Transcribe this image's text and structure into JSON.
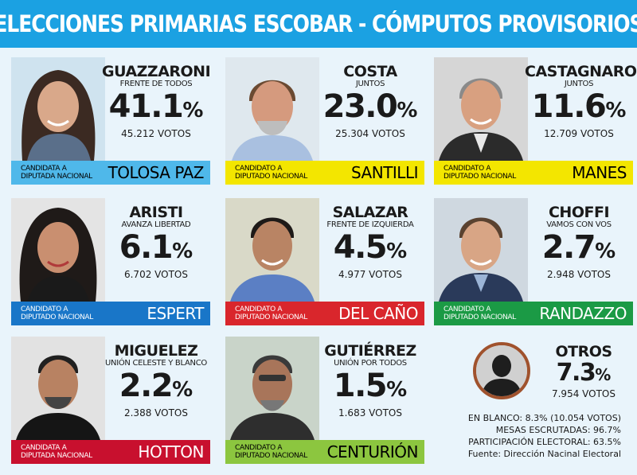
{
  "header": {
    "title": "ELECCIONES PRIMARIAS ESCOBAR - CÓMPUTOS PROVISORIOS"
  },
  "colors": {
    "header": "#1ba1e2",
    "background": "#e9f4fb",
    "lightblue": "#4fb8ea",
    "yellow": "#f3e600",
    "blue": "#1976c8",
    "red": "#d9262c",
    "green": "#1b9a45",
    "lightgreen": "#8cc63f",
    "darkred": "#c8102e"
  },
  "candidates": [
    {
      "surname": "GUAZZARONI",
      "party": "FRENTE DE TODOS",
      "pct": "41.1",
      "votes": "45.212 VOTOS",
      "role1": "CANDIDATA A",
      "role2": "DIPUTADA NACIONAL",
      "candidate": "TOLOSA PAZ"
    },
    {
      "surname": "COSTA",
      "party": "JUNTOS",
      "pct": "23.0",
      "votes": "25.304 VOTOS",
      "role1": "CANDIDATO A",
      "role2": "DIPUTADO NACIONAL",
      "candidate": "SANTILLI"
    },
    {
      "surname": "CASTAGNARO",
      "party": "JUNTOS",
      "pct": "11.6",
      "votes": "12.709 VOTOS",
      "role1": "CANDIDATO A",
      "role2": "DIPUTADO NACIONAL",
      "candidate": "MANES"
    },
    {
      "surname": "ARISTI",
      "party": "AVANZA LIBERTAD",
      "pct": "6.1",
      "votes": "6.702 VOTOS",
      "role1": "CANDIDATO A",
      "role2": "DIPUTADO NACIONAL",
      "candidate": "ESPERT"
    },
    {
      "surname": "SALAZAR",
      "party": "FRENTE DE IZQUIERDA",
      "pct": "4.5",
      "votes": "4.977 VOTOS",
      "role1": "CANDIDATO A",
      "role2": "DIPUTADO NACIONAL",
      "candidate": "DEL CAÑO"
    },
    {
      "surname": "CHOFFI",
      "party": "VAMOS CON VOS",
      "pct": "2.7",
      "votes": "2.948 VOTOS",
      "role1": "CANDIDATO A",
      "role2": "DIPUTADO NACIONAL",
      "candidate": "RANDAZZO"
    },
    {
      "surname": "MIGUELEZ",
      "party": "UNIÓN CELESTE Y BLANCO",
      "pct": "2.2",
      "votes": "2.388 VOTOS",
      "role1": "CANDIDATA A",
      "role2": "DIPUTADA NACIONAL",
      "candidate": "HOTTON"
    },
    {
      "surname": "GUTIÉRREZ",
      "party": "UNIÓN POR TODOS",
      "pct": "1.5",
      "votes": "1.683 VOTOS",
      "role1": "CANDIDATO A",
      "role2": "DIPUTADO NACIONAL",
      "candidate": "CENTURIÓN"
    }
  ],
  "pct_unit": "%",
  "others": {
    "label": "OTROS",
    "pct": "7.3",
    "votes": "7.954 VOTOS"
  },
  "stats": {
    "blank": "EN BLANCO:  8.3% (10.054 VOTOS)",
    "tables": "MESAS ESCRUTADAS:  96.7%",
    "participation": "PARTICIPACIÓN ELECTORAL:  63.5%",
    "source": "Fuente: Dirección Nacinal Electoral"
  }
}
